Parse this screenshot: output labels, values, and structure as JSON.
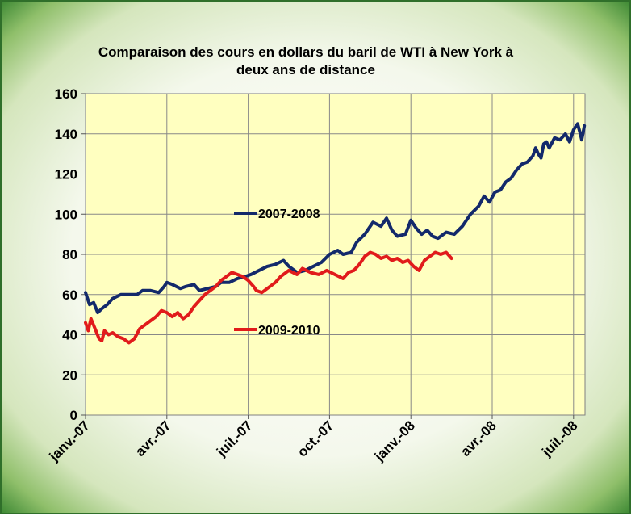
{
  "chart_data": {
    "type": "line",
    "title": [
      "Comparaison des cours en dollars du baril de WTI à New York à",
      "deux ans de distance"
    ],
    "xlabel": "",
    "ylabel": "",
    "ylim": [
      0,
      160
    ],
    "yticks": [
      0,
      20,
      40,
      60,
      80,
      100,
      120,
      140,
      160
    ],
    "xticks": [
      {
        "label": "janv.-07",
        "month": 0
      },
      {
        "label": "avr.-07",
        "month": 3
      },
      {
        "label": "juil.-07",
        "month": 6
      },
      {
        "label": "oct.-07",
        "month": 9
      },
      {
        "label": "janv.-08",
        "month": 12
      },
      {
        "label": "avr.-08",
        "month": 15
      },
      {
        "label": "juil.-08",
        "month": 18
      }
    ],
    "xlim_months": [
      0,
      18.4
    ],
    "grid": true,
    "legend_placement": "inline, center-left",
    "series": [
      {
        "name": "2007-2008",
        "color": "#13296b",
        "points": [
          [
            0,
            61
          ],
          [
            0.15,
            55
          ],
          [
            0.3,
            56
          ],
          [
            0.45,
            51
          ],
          [
            0.6,
            53
          ],
          [
            0.8,
            55
          ],
          [
            1.0,
            58
          ],
          [
            1.3,
            60
          ],
          [
            1.6,
            60
          ],
          [
            1.9,
            60
          ],
          [
            2.1,
            62
          ],
          [
            2.4,
            62
          ],
          [
            2.7,
            61
          ],
          [
            2.9,
            64
          ],
          [
            3.0,
            66
          ],
          [
            3.2,
            65
          ],
          [
            3.5,
            63
          ],
          [
            3.7,
            64
          ],
          [
            4.0,
            65
          ],
          [
            4.2,
            62
          ],
          [
            4.5,
            63
          ],
          [
            4.8,
            64
          ],
          [
            5.0,
            66
          ],
          [
            5.3,
            66
          ],
          [
            5.6,
            68
          ],
          [
            5.9,
            69
          ],
          [
            6.1,
            70
          ],
          [
            6.4,
            72
          ],
          [
            6.7,
            74
          ],
          [
            7.0,
            75
          ],
          [
            7.3,
            77
          ],
          [
            7.5,
            74
          ],
          [
            7.8,
            71
          ],
          [
            8.1,
            72
          ],
          [
            8.4,
            74
          ],
          [
            8.7,
            76
          ],
          [
            9.0,
            80
          ],
          [
            9.3,
            82
          ],
          [
            9.5,
            80
          ],
          [
            9.8,
            81
          ],
          [
            10.0,
            86
          ],
          [
            10.3,
            90
          ],
          [
            10.6,
            96
          ],
          [
            10.9,
            94
          ],
          [
            11.1,
            98
          ],
          [
            11.3,
            92
          ],
          [
            11.5,
            89
          ],
          [
            11.8,
            90
          ],
          [
            12.0,
            97
          ],
          [
            12.2,
            93
          ],
          [
            12.4,
            90
          ],
          [
            12.6,
            92
          ],
          [
            12.8,
            89
          ],
          [
            13.0,
            88
          ],
          [
            13.3,
            91
          ],
          [
            13.6,
            90
          ],
          [
            13.9,
            94
          ],
          [
            14.2,
            100
          ],
          [
            14.5,
            104
          ],
          [
            14.7,
            109
          ],
          [
            14.9,
            106
          ],
          [
            15.1,
            111
          ],
          [
            15.3,
            112
          ],
          [
            15.5,
            116
          ],
          [
            15.7,
            118
          ],
          [
            15.9,
            122
          ],
          [
            16.1,
            125
          ],
          [
            16.3,
            126
          ],
          [
            16.5,
            129
          ],
          [
            16.6,
            133
          ],
          [
            16.7,
            130
          ],
          [
            16.8,
            128
          ],
          [
            16.9,
            135
          ],
          [
            17.0,
            136
          ],
          [
            17.1,
            133
          ],
          [
            17.3,
            138
          ],
          [
            17.5,
            137
          ],
          [
            17.7,
            140
          ],
          [
            17.85,
            136
          ],
          [
            18.0,
            142
          ],
          [
            18.15,
            145
          ],
          [
            18.25,
            140
          ],
          [
            18.3,
            137
          ],
          [
            18.4,
            144
          ]
        ]
      },
      {
        "name": "2009-2010",
        "color": "#e11b1b",
        "points": [
          [
            0,
            46
          ],
          [
            0.1,
            42
          ],
          [
            0.2,
            48
          ],
          [
            0.35,
            43
          ],
          [
            0.5,
            38
          ],
          [
            0.6,
            37
          ],
          [
            0.7,
            42
          ],
          [
            0.85,
            40
          ],
          [
            1.0,
            41
          ],
          [
            1.2,
            39
          ],
          [
            1.4,
            38
          ],
          [
            1.6,
            36
          ],
          [
            1.8,
            38
          ],
          [
            2.0,
            43
          ],
          [
            2.2,
            45
          ],
          [
            2.4,
            47
          ],
          [
            2.6,
            49
          ],
          [
            2.8,
            52
          ],
          [
            3.0,
            51
          ],
          [
            3.2,
            49
          ],
          [
            3.4,
            51
          ],
          [
            3.6,
            48
          ],
          [
            3.8,
            50
          ],
          [
            4.0,
            54
          ],
          [
            4.2,
            57
          ],
          [
            4.4,
            60
          ],
          [
            4.6,
            62
          ],
          [
            4.8,
            64
          ],
          [
            5.0,
            67
          ],
          [
            5.2,
            69
          ],
          [
            5.4,
            71
          ],
          [
            5.6,
            70
          ],
          [
            5.8,
            69
          ],
          [
            6.0,
            67
          ],
          [
            6.2,
            64
          ],
          [
            6.3,
            62
          ],
          [
            6.5,
            61
          ],
          [
            6.8,
            64
          ],
          [
            7.0,
            66
          ],
          [
            7.2,
            69
          ],
          [
            7.5,
            72
          ],
          [
            7.8,
            70
          ],
          [
            8.0,
            73
          ],
          [
            8.3,
            71
          ],
          [
            8.6,
            70
          ],
          [
            8.9,
            72
          ],
          [
            9.2,
            70
          ],
          [
            9.5,
            68
          ],
          [
            9.7,
            71
          ],
          [
            9.9,
            72
          ],
          [
            10.1,
            75
          ],
          [
            10.3,
            79
          ],
          [
            10.5,
            81
          ],
          [
            10.7,
            80
          ],
          [
            10.9,
            78
          ],
          [
            11.1,
            79
          ],
          [
            11.3,
            77
          ],
          [
            11.5,
            78
          ],
          [
            11.7,
            76
          ],
          [
            11.9,
            77
          ],
          [
            12.1,
            74
          ],
          [
            12.3,
            72
          ],
          [
            12.5,
            77
          ],
          [
            12.7,
            79
          ],
          [
            12.9,
            81
          ],
          [
            13.1,
            80
          ],
          [
            13.3,
            81
          ],
          [
            13.5,
            78
          ]
        ]
      }
    ]
  }
}
